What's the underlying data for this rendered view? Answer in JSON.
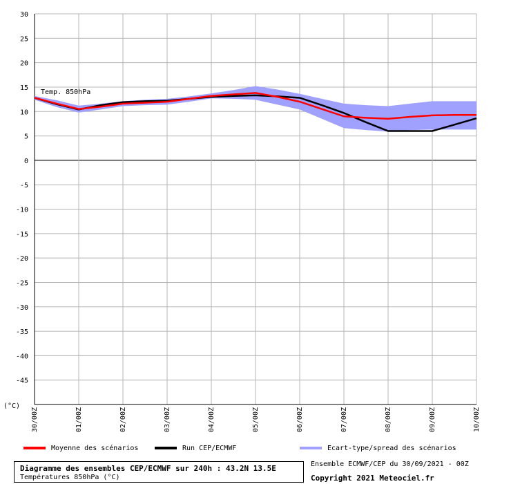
{
  "chart_data": {
    "type": "line",
    "title": "Diagramme des ensembles CEP/ECMWF sur 240h : 43.2N 13.5E",
    "subtitle": "Températures 850hPa (°C)",
    "annotation": "Temp. 850hPa",
    "ylabel": "(°C)",
    "ylim": [
      -50,
      30
    ],
    "yticks": [
      30,
      25,
      20,
      15,
      10,
      5,
      0,
      -5,
      -10,
      -15,
      -20,
      -25,
      -30,
      -35,
      -40,
      -45
    ],
    "grid": true,
    "legend_position": "bottom",
    "categories": [
      "30/00Z",
      "01/00Z",
      "02/00Z",
      "03/00Z",
      "04/00Z",
      "05/00Z",
      "06/00Z",
      "07/00Z",
      "08/00Z",
      "09/00Z",
      "10/00Z"
    ],
    "x": [
      0,
      0.5,
      1,
      1.5,
      2,
      2.5,
      3,
      3.5,
      4,
      4.5,
      5,
      5.5,
      6,
      6.5,
      7,
      7.5,
      8,
      8.5,
      9,
      9.5,
      10
    ],
    "series": [
      {
        "name": "Moyenne des scénarios",
        "color": "#ff0000",
        "values": [
          12.8,
          11.6,
          10.5,
          11.0,
          11.6,
          11.8,
          12.0,
          12.6,
          13.2,
          13.5,
          13.8,
          13.0,
          12.0,
          10.5,
          9.0,
          8.7,
          8.5,
          8.9,
          9.2,
          9.3,
          9.3
        ]
      },
      {
        "name": "Run CEP/ECMWF",
        "color": "#000000",
        "values": [
          12.8,
          11.5,
          10.4,
          11.3,
          11.9,
          12.1,
          12.2,
          12.6,
          13.0,
          13.2,
          13.3,
          13.1,
          12.8,
          11.3,
          9.7,
          7.8,
          6.0,
          6.0,
          6.0,
          7.3,
          8.6
        ]
      }
    ],
    "spread": {
      "name": "Ecart-type/spread des scénarios",
      "color": "#a0a0ff",
      "upper": [
        13.2,
        12.3,
        11.2,
        11.6,
        12.1,
        12.4,
        12.6,
        13.1,
        13.7,
        14.4,
        15.2,
        14.5,
        13.6,
        12.6,
        11.6,
        11.3,
        11.1,
        11.6,
        12.1,
        12.1,
        12.1
      ],
      "lower": [
        12.4,
        10.9,
        9.8,
        10.4,
        11.1,
        11.3,
        11.4,
        12.0,
        12.7,
        12.6,
        12.4,
        11.4,
        10.4,
        8.5,
        6.6,
        6.2,
        5.9,
        6.2,
        6.3,
        6.3,
        6.3
      ]
    }
  },
  "legend": {
    "mean_label": "Moyenne des scénarios",
    "run_label": "Run CEP/ECMWF",
    "spread_label": "Ecart-type/spread des scénarios"
  },
  "footer": {
    "title": "Diagramme des ensembles CEP/ECMWF sur 240h : 43.2N 13.5E",
    "subtitle": "Températures 850hPa (°C)",
    "run_info": "Ensemble ECMWF/CEP du 30/09/2021 - 00Z",
    "copyright": "Copyright 2021 Meteociel.fr"
  }
}
